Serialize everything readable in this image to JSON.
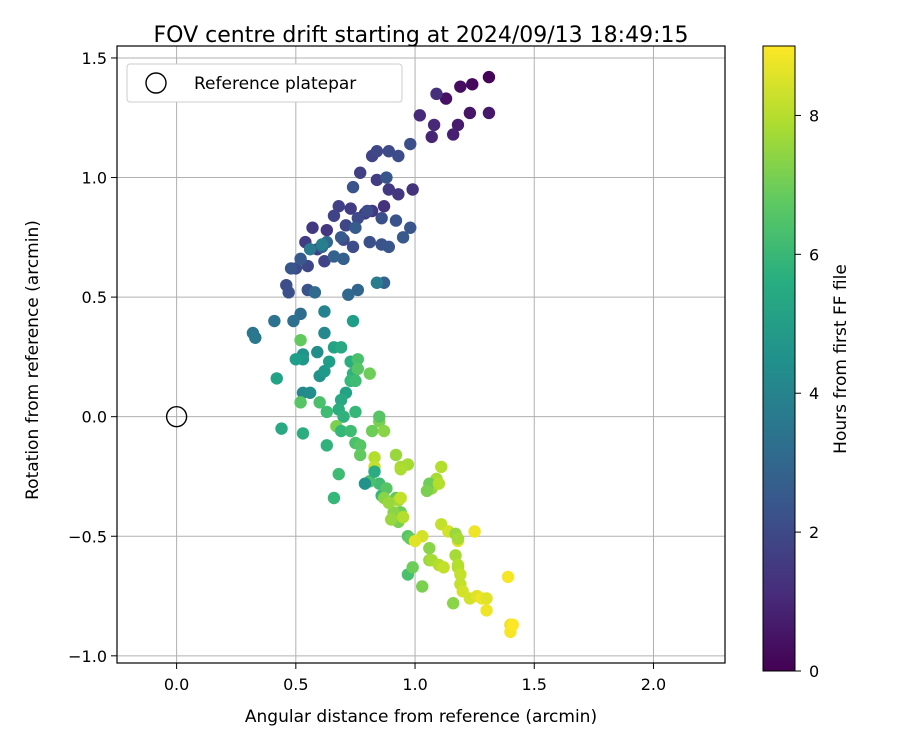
{
  "chart_data": {
    "type": "scatter",
    "title": "FOV centre drift starting at 2024/09/13 18:49:15",
    "xlabel": "Angular distance from reference (arcmin)",
    "ylabel": "Rotation from reference (arcmin)",
    "xlim": [
      -0.25,
      2.3
    ],
    "ylim": [
      -1.03,
      1.55
    ],
    "xticks": [
      0.0,
      0.5,
      1.0,
      1.5,
      2.0
    ],
    "xtick_labels": [
      "0.0",
      "0.5",
      "1.0",
      "1.5",
      "2.0"
    ],
    "yticks": [
      -1.0,
      -0.5,
      0.0,
      0.5,
      1.0,
      1.5
    ],
    "ytick_labels": [
      "−1.0",
      "−0.5",
      "0.0",
      "0.5",
      "1.0",
      "1.5"
    ],
    "grid": true,
    "legend": {
      "position": "top-left",
      "entries": [
        {
          "label": "Reference platepar",
          "marker": "open-circle"
        }
      ]
    },
    "reference_point": {
      "x": 0.0,
      "y": 0.0
    },
    "colorbar": {
      "label": "Hours from first FF file",
      "colormap": "viridis",
      "range": [
        0,
        9
      ],
      "ticks": [
        0,
        2,
        4,
        6,
        8
      ],
      "tick_labels": [
        "0",
        "2",
        "4",
        "6",
        "8"
      ]
    },
    "series": [
      {
        "points": [
          [
            1.31,
            1.42,
            0.1
          ],
          [
            1.24,
            1.39,
            0.2
          ],
          [
            1.19,
            1.38,
            0.3
          ],
          [
            1.13,
            1.33,
            0.4
          ],
          [
            1.23,
            1.27,
            0.5
          ],
          [
            1.31,
            1.27,
            0.6
          ],
          [
            1.18,
            1.22,
            0.7
          ],
          [
            1.16,
            1.18,
            0.8
          ],
          [
            1.07,
            1.17,
            0.9
          ],
          [
            1.08,
            1.22,
            1.0
          ],
          [
            1.02,
            1.26,
            1.1
          ],
          [
            1.09,
            1.35,
            1.2
          ],
          [
            0.99,
            0.95,
            1.3
          ],
          [
            0.93,
            0.93,
            1.4
          ],
          [
            0.89,
            0.95,
            1.5
          ],
          [
            0.84,
            0.99,
            1.6
          ],
          [
            0.77,
            1.02,
            1.7
          ],
          [
            0.82,
            1.09,
            1.8
          ],
          [
            0.84,
            1.11,
            1.9
          ],
          [
            0.89,
            1.11,
            2.0
          ],
          [
            0.93,
            1.09,
            2.1
          ],
          [
            0.98,
            1.14,
            2.2
          ],
          [
            0.74,
            0.96,
            2.3
          ],
          [
            0.88,
            1.0,
            2.4
          ],
          [
            0.87,
            0.88,
            1.3
          ],
          [
            0.82,
            0.86,
            1.4
          ],
          [
            0.79,
            0.85,
            1.5
          ],
          [
            0.73,
            0.87,
            1.6
          ],
          [
            0.68,
            0.88,
            1.7
          ],
          [
            0.66,
            0.84,
            1.8
          ],
          [
            0.71,
            0.8,
            1.9
          ],
          [
            0.76,
            0.83,
            2.0
          ],
          [
            0.8,
            0.86,
            2.1
          ],
          [
            0.86,
            0.83,
            2.2
          ],
          [
            0.92,
            0.82,
            2.3
          ],
          [
            0.98,
            0.79,
            2.4
          ],
          [
            0.63,
            0.78,
            1.4
          ],
          [
            0.57,
            0.79,
            1.5
          ],
          [
            0.54,
            0.73,
            1.6
          ],
          [
            0.59,
            0.7,
            1.7
          ],
          [
            0.62,
            0.65,
            1.8
          ],
          [
            0.55,
            0.63,
            1.9
          ],
          [
            0.5,
            0.62,
            2.0
          ],
          [
            0.46,
            0.55,
            2.1
          ],
          [
            0.47,
            0.52,
            2.2
          ],
          [
            0.55,
            0.53,
            2.3
          ],
          [
            0.48,
            0.62,
            2.4
          ],
          [
            0.52,
            0.66,
            2.5
          ],
          [
            0.7,
            0.74,
            2.0
          ],
          [
            0.74,
            0.71,
            2.1
          ],
          [
            0.81,
            0.73,
            2.2
          ],
          [
            0.86,
            0.72,
            2.3
          ],
          [
            0.89,
            0.71,
            2.4
          ],
          [
            0.95,
            0.75,
            2.5
          ],
          [
            0.75,
            0.79,
            2.6
          ],
          [
            0.7,
            0.66,
            2.7
          ],
          [
            0.66,
            0.67,
            2.8
          ],
          [
            0.61,
            0.71,
            2.9
          ],
          [
            0.63,
            0.73,
            3.0
          ],
          [
            0.69,
            0.75,
            2.5
          ],
          [
            0.87,
            0.56,
            2.8
          ],
          [
            0.76,
            0.53,
            2.9
          ],
          [
            0.72,
            0.51,
            3.0
          ],
          [
            0.58,
            0.52,
            3.1
          ],
          [
            0.52,
            0.43,
            3.2
          ],
          [
            0.49,
            0.4,
            3.3
          ],
          [
            0.41,
            0.4,
            3.4
          ],
          [
            0.32,
            0.35,
            3.5
          ],
          [
            0.33,
            0.33,
            3.6
          ],
          [
            0.56,
            0.7,
            3.7
          ],
          [
            0.84,
            0.56,
            3.8
          ],
          [
            0.61,
            0.72,
            3.9
          ],
          [
            0.62,
            0.44,
            4.0
          ],
          [
            0.62,
            0.35,
            4.2
          ],
          [
            0.59,
            0.27,
            4.4
          ],
          [
            0.53,
            0.26,
            4.6
          ],
          [
            0.53,
            0.24,
            4.8
          ],
          [
            0.5,
            0.24,
            5.0
          ],
          [
            0.42,
            0.16,
            5.2
          ],
          [
            0.44,
            -0.05,
            5.4
          ],
          [
            0.53,
            -0.07,
            5.6
          ],
          [
            0.63,
            -0.12,
            5.8
          ],
          [
            0.66,
            -0.34,
            6.0
          ],
          [
            0.68,
            -0.24,
            6.2
          ],
          [
            0.53,
            0.1,
            4.2
          ],
          [
            0.56,
            0.1,
            4.4
          ],
          [
            0.6,
            0.17,
            4.6
          ],
          [
            0.62,
            0.19,
            4.8
          ],
          [
            0.64,
            0.23,
            5.0
          ],
          [
            0.66,
            0.29,
            5.2
          ],
          [
            0.69,
            0.29,
            5.4
          ],
          [
            0.73,
            0.23,
            5.6
          ],
          [
            0.74,
            0.18,
            5.8
          ],
          [
            0.73,
            0.15,
            6.0
          ],
          [
            0.75,
            0.15,
            6.2
          ],
          [
            0.76,
            0.24,
            6.4
          ],
          [
            0.74,
            0.4,
            5.0
          ],
          [
            0.71,
            0.1,
            5.2
          ],
          [
            0.69,
            0.07,
            5.4
          ],
          [
            0.68,
            0.03,
            5.6
          ],
          [
            0.7,
            0.0,
            5.8
          ],
          [
            0.75,
            0.02,
            6.0
          ],
          [
            0.63,
            0.02,
            6.2
          ],
          [
            0.6,
            0.06,
            6.4
          ],
          [
            0.52,
            0.06,
            6.6
          ],
          [
            0.52,
            0.32,
            6.8
          ],
          [
            0.81,
            0.18,
            7.0
          ],
          [
            0.67,
            -0.04,
            7.2
          ],
          [
            0.69,
            -0.06,
            6.0
          ],
          [
            0.73,
            -0.06,
            6.2
          ],
          [
            0.75,
            -0.11,
            6.4
          ],
          [
            0.77,
            -0.12,
            6.6
          ],
          [
            0.77,
            -0.16,
            6.8
          ],
          [
            0.82,
            -0.06,
            7.0
          ],
          [
            0.85,
            -0.02,
            7.2
          ],
          [
            0.87,
            -0.06,
            7.4
          ],
          [
            0.92,
            -0.16,
            7.6
          ],
          [
            0.94,
            -0.21,
            7.8
          ],
          [
            0.83,
            -0.17,
            8.0
          ],
          [
            0.83,
            -0.21,
            8.2
          ],
          [
            0.86,
            -0.33,
            6.0
          ],
          [
            0.85,
            -0.28,
            6.2
          ],
          [
            0.81,
            -0.27,
            6.4
          ],
          [
            0.88,
            -0.3,
            6.6
          ],
          [
            0.92,
            -0.34,
            6.8
          ],
          [
            0.94,
            -0.4,
            7.0
          ],
          [
            0.93,
            -0.44,
            7.2
          ],
          [
            0.91,
            -0.4,
            7.4
          ],
          [
            0.9,
            -0.43,
            7.6
          ],
          [
            0.93,
            -0.35,
            7.8
          ],
          [
            0.95,
            -0.42,
            8.0
          ],
          [
            0.94,
            -0.34,
            8.2
          ],
          [
            0.97,
            -0.66,
            6.4
          ],
          [
            0.97,
            -0.5,
            6.6
          ],
          [
            0.98,
            -0.51,
            6.8
          ],
          [
            0.99,
            -0.63,
            7.0
          ],
          [
            1.03,
            -0.71,
            7.2
          ],
          [
            1.06,
            -0.55,
            7.4
          ],
          [
            1.06,
            -0.6,
            7.6
          ],
          [
            1.07,
            -0.6,
            7.8
          ],
          [
            1.1,
            -0.62,
            8.0
          ],
          [
            1.12,
            -0.63,
            8.2
          ],
          [
            1.03,
            -0.5,
            8.4
          ],
          [
            1.0,
            -0.52,
            8.6
          ],
          [
            1.07,
            -0.3,
            7.6
          ],
          [
            1.09,
            -0.26,
            7.8
          ],
          [
            1.11,
            -0.21,
            8.0
          ],
          [
            1.11,
            -0.45,
            8.2
          ],
          [
            1.14,
            -0.48,
            8.4
          ],
          [
            1.18,
            -0.52,
            8.6
          ],
          [
            1.17,
            -0.58,
            7.8
          ],
          [
            1.18,
            -0.63,
            8.0
          ],
          [
            1.19,
            -0.7,
            8.2
          ],
          [
            1.23,
            -0.76,
            8.4
          ],
          [
            1.26,
            -0.75,
            8.6
          ],
          [
            1.28,
            -0.76,
            8.8
          ],
          [
            1.17,
            -0.49,
            7.6
          ],
          [
            1.18,
            -0.51,
            7.8
          ],
          [
            1.18,
            -0.62,
            8.0
          ],
          [
            1.19,
            -0.66,
            8.2
          ],
          [
            1.2,
            -0.73,
            8.4
          ],
          [
            1.3,
            -0.76,
            8.6
          ],
          [
            1.3,
            -0.81,
            8.8
          ],
          [
            1.39,
            -0.67,
            8.9
          ],
          [
            1.4,
            -0.87,
            8.7
          ],
          [
            1.4,
            -0.9,
            8.9
          ],
          [
            1.41,
            -0.87,
            9.0
          ],
          [
            1.25,
            -0.48,
            8.8
          ],
          [
            1.06,
            -0.28,
            7.0
          ],
          [
            1.05,
            -0.31,
            7.2
          ],
          [
            0.87,
            -0.34,
            7.4
          ],
          [
            0.89,
            -0.36,
            7.6
          ],
          [
            0.97,
            -0.2,
            7.8
          ],
          [
            1.1,
            -0.28,
            8.0
          ],
          [
            0.83,
            -0.23,
            5.5
          ],
          [
            0.79,
            -0.28,
            4.6
          ],
          [
            0.76,
            0.2,
            6.6
          ],
          [
            0.85,
            0.0,
            6.6
          ],
          [
            0.94,
            -0.22,
            7.9
          ],
          [
            1.16,
            -0.78,
            7.4
          ]
        ]
      }
    ]
  }
}
